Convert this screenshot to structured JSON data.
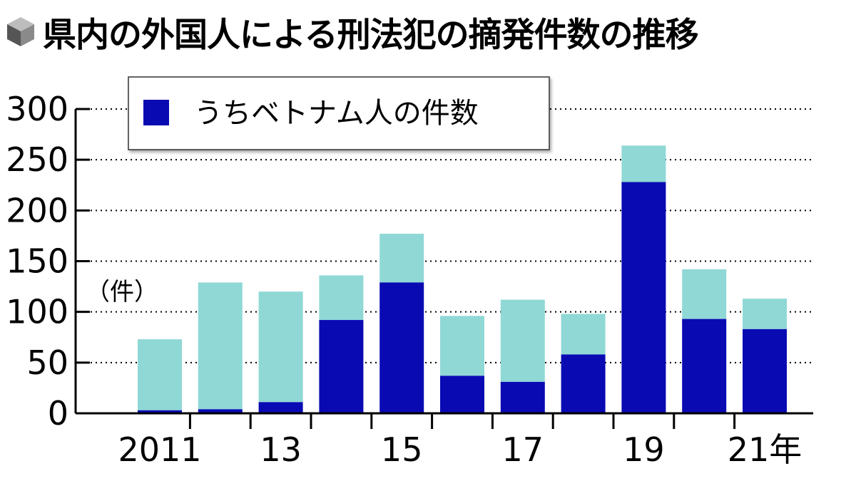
{
  "title": "県内の外国人による刑法犯の摘発件数の推移",
  "title_icon": "cube-icon",
  "colors": {
    "total": "#8fd8d6",
    "vietnam": "#0a0ab3",
    "axis": "#000000",
    "grid": "#000000"
  },
  "chart_data": {
    "type": "bar",
    "stacked": true,
    "title": "県内の外国人による刑法犯の摘発件数の推移",
    "ylabel": "（件）",
    "xlabel": "",
    "ylim": [
      0,
      300
    ],
    "yticks": [
      "0",
      "50",
      "100",
      "150",
      "200",
      "250",
      "300"
    ],
    "grid": true,
    "legend_position": "top-left",
    "categories": [
      "2011",
      "2012",
      "2013",
      "2014",
      "2015",
      "2016",
      "2017",
      "2018",
      "2019",
      "2020",
      "2021"
    ],
    "x_tick_labels": [
      "2011",
      "",
      "13",
      "",
      "15",
      "",
      "17",
      "",
      "19",
      "",
      "21年"
    ],
    "series": [
      {
        "name": "うちベトナム人の件数",
        "values": [
          3,
          4,
          11,
          92,
          129,
          37,
          31,
          58,
          228,
          93,
          83
        ]
      },
      {
        "values": [
          70,
          125,
          109,
          44,
          48,
          59,
          81,
          40,
          36,
          49,
          30
        ]
      }
    ]
  }
}
